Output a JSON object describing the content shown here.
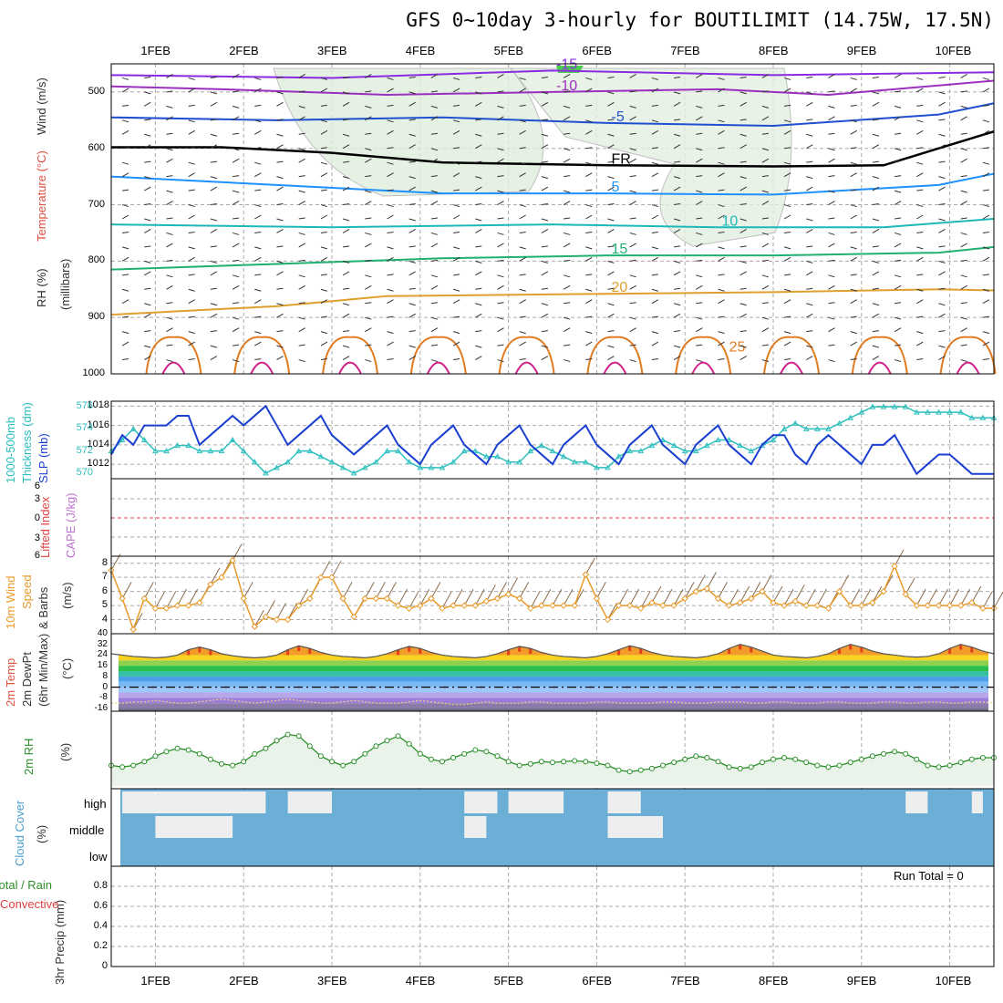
{
  "title": "GFS 0~10day 3-hourly for BOUTILIMIT (14.75W, 17.5N)",
  "dates": [
    "1FEB",
    "2FEB",
    "3FEB",
    "4FEB",
    "5FEB",
    "6FEB",
    "7FEB",
    "8FEB",
    "9FEB",
    "10FEB"
  ],
  "colors": {
    "frame": "#000000",
    "grid": "#aaaaaa",
    "slp": "#1a3fd1",
    "thickness": "#2fbfbf",
    "wind10m": "#e89a2a",
    "rh2m": "#2a8f2a",
    "rh2m_fill": "#eaf3ea",
    "cloud": "#6baed6",
    "cloud_clear": "#eeeeee",
    "zero_line": "#e04040",
    "barb": "#333333"
  },
  "panel_labels": {
    "upper": [
      "RH (%)",
      "Temperature (°C)",
      "Wind (m/s)"
    ],
    "upper_axis": "(millibars)",
    "slp": [
      "1000-500mb",
      "Thickness (dm)",
      "SLP (mb)"
    ],
    "stability": [
      "Lifted Index",
      "CAPE (J/kg)"
    ],
    "wind": [
      "10m Wind",
      "Speed",
      "& Barbs",
      "(m/s)"
    ],
    "temp": [
      "2m Temp",
      "2m DewPt",
      "(6hr Min/Max)",
      "(°C)"
    ],
    "rh": [
      "2m RH",
      "(%)"
    ],
    "cloud": [
      "Cloud Cover",
      "(%)"
    ],
    "precip": [
      "Total / Rain",
      "Convective",
      "3hr Precip (mm)"
    ]
  },
  "cloud_levels": [
    "high",
    "middle",
    "low"
  ],
  "run_total": "Run Total = 0",
  "chart_data": {
    "type": "line",
    "time_step_hours": 3,
    "start": "31JAN 12Z",
    "steps": 81,
    "upper_air": {
      "yaxis_mb": [
        500,
        600,
        700,
        800,
        900,
        1000
      ],
      "ylim": [
        450,
        1000
      ],
      "isotherm_labels": [
        "-15",
        "-10",
        "-5",
        "FR",
        "5",
        "10",
        "15",
        "20",
        "25"
      ],
      "isotherms": [
        {
          "label": "-15",
          "color": "#8a2be2",
          "points": [
            [
              0,
              470
            ],
            [
              20,
              475
            ],
            [
              40,
              462
            ],
            [
              60,
              470
            ],
            [
              80,
              465
            ]
          ]
        },
        {
          "label": "-10",
          "color": "#9b30c0",
          "points": [
            [
              0,
              490
            ],
            [
              10,
              495
            ],
            [
              25,
              505
            ],
            [
              40,
              500
            ],
            [
              55,
              495
            ],
            [
              65,
              505
            ],
            [
              80,
              480
            ]
          ]
        },
        {
          "label": "-5",
          "color": "#2050d0",
          "points": [
            [
              0,
              545
            ],
            [
              15,
              550
            ],
            [
              30,
              545
            ],
            [
              45,
              555
            ],
            [
              60,
              560
            ],
            [
              75,
              540
            ],
            [
              80,
              520
            ]
          ]
        },
        {
          "label": "FR",
          "color": "#000000",
          "points": [
            [
              0,
              598
            ],
            [
              10,
              598
            ],
            [
              20,
              608
            ],
            [
              30,
              625
            ],
            [
              45,
              630
            ],
            [
              60,
              632
            ],
            [
              70,
              630
            ],
            [
              80,
              570
            ]
          ]
        },
        {
          "label": "5",
          "color": "#1e90ff",
          "points": [
            [
              0,
              650
            ],
            [
              15,
              665
            ],
            [
              30,
              680
            ],
            [
              45,
              680
            ],
            [
              60,
              682
            ],
            [
              75,
              665
            ],
            [
              80,
              645
            ]
          ]
        },
        {
          "label": "10",
          "color": "#1cb8b8",
          "points": [
            [
              0,
              735
            ],
            [
              20,
              740
            ],
            [
              40,
              735
            ],
            [
              55,
              740
            ],
            [
              70,
              740
            ],
            [
              80,
              725
            ]
          ]
        },
        {
          "label": "15",
          "color": "#20b070",
          "points": [
            [
              0,
              815
            ],
            [
              15,
              805
            ],
            [
              30,
              795
            ],
            [
              45,
              790
            ],
            [
              60,
              790
            ],
            [
              75,
              785
            ],
            [
              80,
              775
            ]
          ]
        },
        {
          "label": "20",
          "color": "#e0a030",
          "points": [
            [
              0,
              895
            ],
            [
              15,
              880
            ],
            [
              25,
              862
            ],
            [
              45,
              858
            ],
            [
              60,
              855
            ],
            [
              75,
              850
            ],
            [
              80,
              852
            ]
          ]
        }
      ]
    },
    "slp_mb": {
      "ylim": [
        1010.5,
        1018.5
      ],
      "ticks": [
        1012,
        1014,
        1016,
        1018
      ],
      "values": [
        1013,
        1015,
        1014,
        1016,
        1016,
        1016,
        1017,
        1017,
        1014,
        1015,
        1016,
        1017,
        1016,
        1017,
        1018,
        1016,
        1014,
        1015,
        1016,
        1017,
        1015,
        1014,
        1013,
        1014,
        1015,
        1016,
        1014,
        1013,
        1012,
        1014,
        1015,
        1016,
        1014,
        1013,
        1012,
        1014,
        1015,
        1016,
        1014,
        1013,
        1012,
        1014,
        1015,
        1016,
        1014,
        1013,
        1012,
        1014,
        1015,
        1016,
        1014,
        1013,
        1012,
        1014,
        1015,
        1016,
        1014,
        1013,
        1012,
        1014,
        1015,
        1015,
        1013,
        1012,
        1014,
        1015,
        1014,
        1013,
        1012,
        1014,
        1014,
        1015,
        1013,
        1011,
        1012,
        1013,
        1013,
        1012,
        1011,
        1011,
        1011
      ]
    },
    "thickness_dm": {
      "ylim": [
        569.5,
        576.5
      ],
      "ticks": [
        570,
        572,
        574,
        576
      ],
      "values": [
        572,
        573,
        574,
        573,
        572,
        572,
        572.5,
        572.5,
        572,
        572,
        572,
        573,
        572,
        571,
        570,
        570.5,
        571,
        572,
        572,
        571.5,
        571,
        570.5,
        570,
        570.5,
        571,
        572,
        572,
        571,
        570.5,
        570.5,
        570.5,
        571,
        572,
        572,
        571.5,
        571.5,
        571,
        571,
        572,
        572.5,
        572,
        571.5,
        571,
        571,
        570.5,
        570.5,
        571.5,
        572,
        572,
        572.5,
        573,
        572.5,
        572,
        572,
        572.5,
        573,
        573,
        572.5,
        572,
        572.5,
        573,
        574,
        574.5,
        574,
        574,
        574,
        574.5,
        575,
        575.5,
        576,
        576,
        576,
        576,
        575.5,
        575.5,
        575.5,
        575.5,
        575.5,
        575,
        575,
        575
      ]
    },
    "wind10m_ms": {
      "ylim": [
        3,
        8.5
      ],
      "ticks": [
        4,
        5,
        6,
        7,
        8
      ],
      "values": [
        7.5,
        5.5,
        3.3,
        5.5,
        4.8,
        4.8,
        5,
        5,
        5.2,
        6.5,
        7,
        8.2,
        5.5,
        3.5,
        4.2,
        4,
        4,
        5,
        5.5,
        7,
        7,
        5.5,
        4.2,
        5.5,
        5.5,
        5.5,
        5,
        4.8,
        5,
        5.5,
        4.8,
        5,
        5,
        5,
        5.3,
        5.5,
        5.8,
        5.5,
        4.8,
        5,
        5,
        5,
        5,
        7.2,
        5.5,
        4,
        5,
        5,
        4.8,
        5.2,
        5,
        5,
        5.5,
        6,
        6.2,
        5.5,
        5,
        5.2,
        5.5,
        6,
        5.2,
        5,
        5.3,
        5,
        5,
        4.8,
        6,
        5,
        5,
        5.2,
        6,
        7.8,
        5.8,
        5,
        5,
        5,
        5,
        5,
        5.2,
        4.8,
        4.8
      ]
    },
    "temp2m_c": {
      "ylim": [
        -18,
        40
      ],
      "ticks": [
        -16,
        -8,
        0,
        8,
        16,
        24,
        32,
        40
      ],
      "temp": [
        25,
        24,
        23,
        22.5,
        22,
        22.5,
        24,
        28,
        30,
        28,
        25,
        23.5,
        22.5,
        22,
        22.5,
        24,
        28,
        31,
        29,
        26,
        24,
        23,
        22.5,
        22,
        23,
        25,
        28,
        30.5,
        29,
        26,
        24,
        23,
        22.5,
        22,
        23,
        25,
        28,
        30.5,
        29,
        26,
        24,
        23,
        22.5,
        22,
        23,
        25,
        28,
        31,
        29,
        26,
        24,
        23,
        22.5,
        22,
        23,
        25,
        29,
        32,
        30,
        27,
        24,
        23,
        22.5,
        22,
        23,
        25,
        29,
        32,
        30,
        27,
        25,
        24,
        23,
        22.5,
        23,
        25,
        29,
        32,
        30,
        27,
        25
      ],
      "dewpt": [
        -12,
        -12,
        -11,
        -11,
        -10,
        -11,
        -12,
        -12,
        -11,
        -10,
        -9,
        -10,
        -11,
        -12,
        -11,
        -10,
        -9,
        -10,
        -11,
        -12,
        -12,
        -11,
        -10,
        -11,
        -12,
        -12,
        -12,
        -11,
        -10,
        -11,
        -12,
        -13,
        -13,
        -12,
        -11,
        -12,
        -12,
        -12,
        -11,
        -11,
        -12,
        -12,
        -12,
        -12,
        -11,
        -11,
        -12,
        -12,
        -12,
        -12,
        -11,
        -11,
        -12,
        -12,
        -12,
        -11,
        -11,
        -11,
        -12,
        -12,
        -11,
        -11,
        -12,
        -12,
        -12,
        -11,
        -11,
        -12,
        -12,
        -12,
        -11,
        -11,
        -12,
        -12,
        -11,
        -11,
        -12,
        -12,
        -11,
        -11,
        -12
      ]
    },
    "rh2m_pct": {
      "ylim": [
        0,
        100
      ],
      "values": [
        30,
        28,
        30,
        35,
        42,
        48,
        52,
        50,
        45,
        38,
        32,
        30,
        35,
        45,
        52,
        62,
        70,
        68,
        55,
        42,
        35,
        30,
        35,
        45,
        55,
        62,
        68,
        58,
        45,
        38,
        35,
        40,
        45,
        50,
        48,
        42,
        35,
        30,
        32,
        35,
        34,
        35,
        36,
        35,
        33,
        30,
        24,
        22,
        24,
        26,
        30,
        34,
        38,
        42,
        40,
        35,
        28,
        26,
        28,
        34,
        38,
        40,
        38,
        34,
        30,
        28,
        30,
        34,
        38,
        42,
        45,
        48,
        45,
        38,
        30,
        28,
        30,
        34,
        38,
        40,
        40
      ]
    },
    "cloud_cover": {
      "categories": [
        "high",
        "middle",
        "low"
      ],
      "high_clear_segments": [
        [
          1,
          14
        ],
        [
          16,
          20
        ],
        [
          32,
          35
        ],
        [
          36,
          41
        ],
        [
          45,
          48
        ],
        [
          72,
          74
        ],
        [
          78,
          79
        ]
      ],
      "middle_clear_segments": [
        [
          4,
          11
        ],
        [
          32,
          34
        ],
        [
          45,
          50
        ]
      ]
    },
    "precip_3hr_mm": {
      "ylim": [
        0,
        1
      ],
      "ticks": [
        0,
        0.2,
        0.4,
        0.6,
        0.8
      ],
      "values": []
    }
  }
}
